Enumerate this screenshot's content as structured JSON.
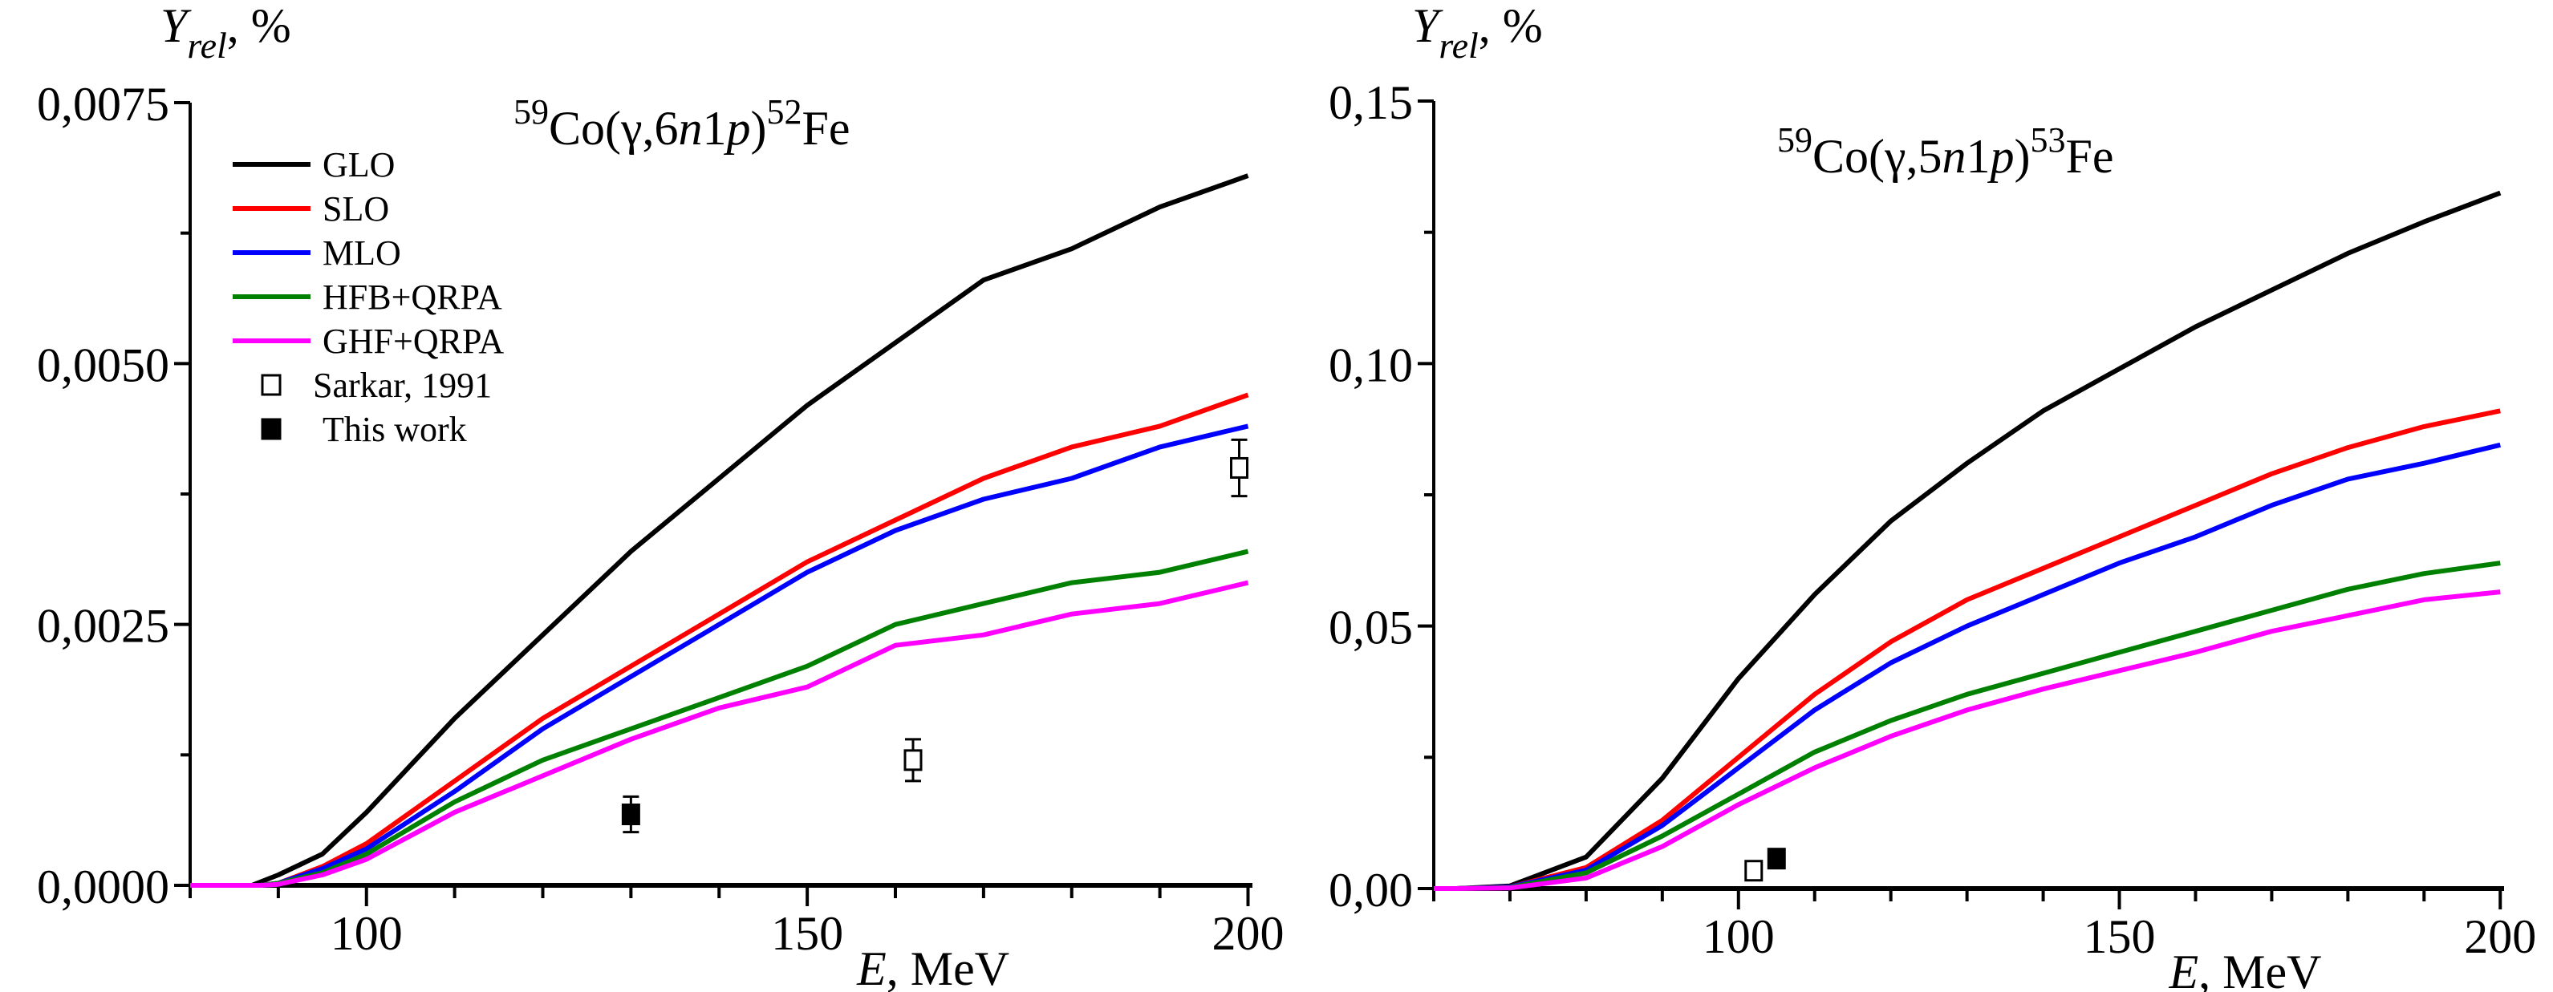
{
  "chart_data": [
    {
      "type": "line",
      "title_parts": [
        {
          "text": "59",
          "sup": true
        },
        {
          "text": "Co(γ,6"
        },
        {
          "text": "n",
          "italic": true
        },
        {
          "text": "1"
        },
        {
          "text": "p",
          "italic": true
        },
        {
          "text": ")"
        },
        {
          "text": "52",
          "sup": true
        },
        {
          "text": "Fe"
        }
      ],
      "ylabel": {
        "main": "Y",
        "sub": "rel",
        "unit": ", %"
      },
      "xlabel": {
        "main": "E",
        "unit": ", MeV"
      },
      "xlim": [
        80,
        200.5
      ],
      "ylim": [
        0,
        0.0075
      ],
      "xticks": [
        100,
        150,
        200
      ],
      "xtick_labels": [
        "100",
        "150",
        "200"
      ],
      "xminor_step": 10,
      "yticks": [
        0,
        0.0025,
        0.005,
        0.0075
      ],
      "ytick_labels": [
        "0,0000",
        "0,0025",
        "0,0050",
        "0,0075"
      ],
      "yminor_step": 0.00125,
      "grid": false,
      "legend_position": "top-left",
      "series": [
        {
          "name": "GLO",
          "color": "#000000",
          "x": [
            80,
            85,
            87,
            90,
            95,
            100,
            110,
            120,
            130,
            140,
            150,
            160,
            170,
            180,
            190,
            200
          ],
          "y": [
            0,
            0,
            0,
            0.0001,
            0.0003,
            0.0007,
            0.0016,
            0.0024,
            0.0032,
            0.0039,
            0.0046,
            0.0052,
            0.0058,
            0.0061,
            0.0065,
            0.0068
          ]
        },
        {
          "name": "SLO",
          "color": "#ff0000",
          "x": [
            80,
            88,
            90,
            95,
            100,
            110,
            120,
            130,
            140,
            150,
            160,
            170,
            180,
            190,
            200
          ],
          "y": [
            0,
            0,
            2e-05,
            0.00018,
            0.0004,
            0.001,
            0.0016,
            0.0021,
            0.0026,
            0.0031,
            0.0035,
            0.0039,
            0.0042,
            0.0044,
            0.0047
          ]
        },
        {
          "name": "MLO",
          "color": "#0000ff",
          "x": [
            80,
            88,
            90,
            95,
            100,
            110,
            120,
            130,
            140,
            150,
            160,
            170,
            180,
            190,
            200
          ],
          "y": [
            0,
            0,
            2e-05,
            0.00016,
            0.00035,
            0.0009,
            0.0015,
            0.002,
            0.0025,
            0.003,
            0.0034,
            0.0037,
            0.0039,
            0.0042,
            0.0044
          ]
        },
        {
          "name": "HFB+QRPA",
          "color": "#008000",
          "x": [
            80,
            88,
            90,
            95,
            100,
            110,
            120,
            130,
            140,
            150,
            160,
            170,
            180,
            190,
            200
          ],
          "y": [
            0,
            0,
            2e-05,
            0.00012,
            0.0003,
            0.0008,
            0.0012,
            0.0015,
            0.0018,
            0.0021,
            0.0025,
            0.0027,
            0.0029,
            0.003,
            0.0032
          ]
        },
        {
          "name": "GHF+QRPA",
          "color": "#ff00ff",
          "x": [
            80,
            88,
            90,
            95,
            100,
            110,
            120,
            130,
            140,
            150,
            160,
            170,
            180,
            190,
            200
          ],
          "y": [
            0,
            0,
            1e-05,
            0.0001,
            0.00025,
            0.0007,
            0.00105,
            0.0014,
            0.0017,
            0.0019,
            0.0023,
            0.0024,
            0.0026,
            0.0027,
            0.0029
          ]
        }
      ],
      "points": [
        {
          "name": "Sarkar, 1991",
          "marker": "open-square",
          "x": [
            162,
            199
          ],
          "y": [
            0.0012,
            0.004
          ],
          "err": [
            0.0002,
            0.00027
          ]
        },
        {
          "name": "This work",
          "marker": "filled-square",
          "x": [
            130
          ],
          "y": [
            0.00068
          ],
          "err": [
            0.00017
          ]
        }
      ]
    },
    {
      "type": "line",
      "title_parts": [
        {
          "text": "59",
          "sup": true
        },
        {
          "text": "Co(γ,5"
        },
        {
          "text": "n",
          "italic": true
        },
        {
          "text": "1"
        },
        {
          "text": "p",
          "italic": true
        },
        {
          "text": ")"
        },
        {
          "text": "53",
          "sup": true
        },
        {
          "text": "Fe"
        }
      ],
      "ylabel": {
        "main": "Y",
        "sub": "rel",
        "unit": ", %"
      },
      "xlabel": {
        "main": "E",
        "unit": ", MeV"
      },
      "xlim": [
        60,
        200.5
      ],
      "ylim": [
        0,
        0.15
      ],
      "xticks": [
        100,
        150,
        200
      ],
      "xtick_labels": [
        "100",
        "150",
        "200"
      ],
      "xminor_step": 10,
      "yticks": [
        0,
        0.05,
        0.1,
        0.15
      ],
      "ytick_labels": [
        "0,00",
        "0,05",
        "0,10",
        "0,15"
      ],
      "yminor_step": 0.025,
      "grid": false,
      "series": [
        {
          "name": "GLO",
          "color": "#000000",
          "x": [
            60,
            63,
            70,
            80,
            90,
            100,
            110,
            120,
            130,
            140,
            150,
            160,
            170,
            180,
            190,
            200
          ],
          "y": [
            0,
            0,
            0.0005,
            0.006,
            0.021,
            0.04,
            0.056,
            0.07,
            0.081,
            0.091,
            0.099,
            0.107,
            0.114,
            0.121,
            0.127,
            0.1325
          ]
        },
        {
          "name": "SLO",
          "color": "#ff0000",
          "x": [
            60,
            63,
            70,
            80,
            90,
            100,
            110,
            120,
            130,
            140,
            150,
            160,
            170,
            180,
            190,
            200
          ],
          "y": [
            0,
            0,
            0.0003,
            0.004,
            0.013,
            0.025,
            0.037,
            0.047,
            0.055,
            0.061,
            0.067,
            0.073,
            0.079,
            0.084,
            0.088,
            0.091
          ]
        },
        {
          "name": "MLO",
          "color": "#0000ff",
          "x": [
            60,
            63,
            70,
            80,
            90,
            100,
            110,
            120,
            130,
            140,
            150,
            160,
            170,
            180,
            190,
            200
          ],
          "y": [
            0,
            0,
            0.0003,
            0.0035,
            0.012,
            0.023,
            0.034,
            0.043,
            0.05,
            0.056,
            0.062,
            0.067,
            0.073,
            0.078,
            0.081,
            0.0845
          ]
        },
        {
          "name": "HFB+QRPA",
          "color": "#008000",
          "x": [
            60,
            63,
            70,
            80,
            90,
            100,
            110,
            120,
            130,
            140,
            150,
            160,
            170,
            180,
            190,
            200
          ],
          "y": [
            0,
            0,
            0.0002,
            0.003,
            0.01,
            0.018,
            0.026,
            0.032,
            0.037,
            0.041,
            0.045,
            0.049,
            0.053,
            0.057,
            0.06,
            0.062
          ]
        },
        {
          "name": "GHF+QRPA",
          "color": "#ff00ff",
          "x": [
            60,
            63,
            70,
            80,
            90,
            100,
            110,
            120,
            130,
            140,
            150,
            160,
            170,
            180,
            190,
            200
          ],
          "y": [
            0,
            0,
            0.0001,
            0.002,
            0.008,
            0.016,
            0.023,
            0.029,
            0.034,
            0.038,
            0.0415,
            0.045,
            0.049,
            0.052,
            0.055,
            0.0565
          ]
        }
      ],
      "points": [
        {
          "name": "Sarkar, 1991",
          "marker": "open-square",
          "x": [
            102
          ],
          "y": [
            0.0034
          ],
          "err": [
            0.0006
          ]
        },
        {
          "name": "This work",
          "marker": "filled-square",
          "x": [
            105
          ],
          "y": [
            0.0057
          ],
          "err": [
            0.0004
          ]
        }
      ]
    }
  ]
}
